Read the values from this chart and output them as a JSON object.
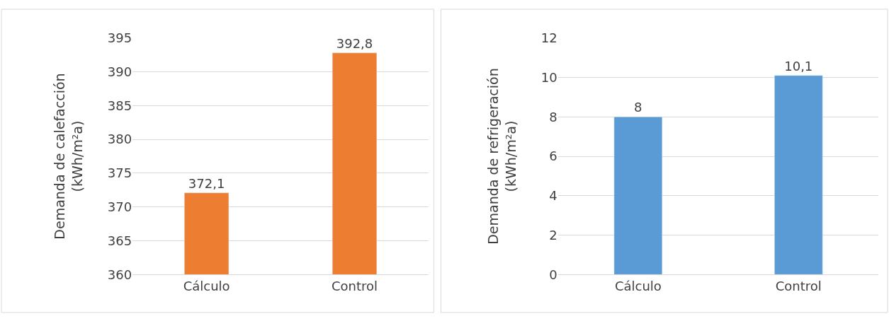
{
  "chart_data": [
    {
      "type": "bar",
      "categories": [
        "Cálculo",
        "Control"
      ],
      "values": [
        372.1,
        392.8
      ],
      "color": "#ed7d31",
      "value_labels": [
        "372,1",
        "392,8"
      ],
      "ylabel": "Demanda de calefacción\n(kWh/m²a)",
      "ylim": [
        360,
        395
      ],
      "yticks": [
        360,
        365,
        370,
        375,
        380,
        385,
        390,
        395
      ],
      "grid": "y"
    },
    {
      "type": "bar",
      "categories": [
        "Cálculo",
        "Control"
      ],
      "values": [
        8,
        10.1
      ],
      "color": "#5b9bd5",
      "value_labels": [
        "8",
        "10,1"
      ],
      "ylabel": "Demanda de refrigeración\n(kWh/m²a)",
      "ylim": [
        0,
        12
      ],
      "yticks": [
        0,
        2,
        4,
        6,
        8,
        10,
        12
      ],
      "grid": "y"
    }
  ]
}
